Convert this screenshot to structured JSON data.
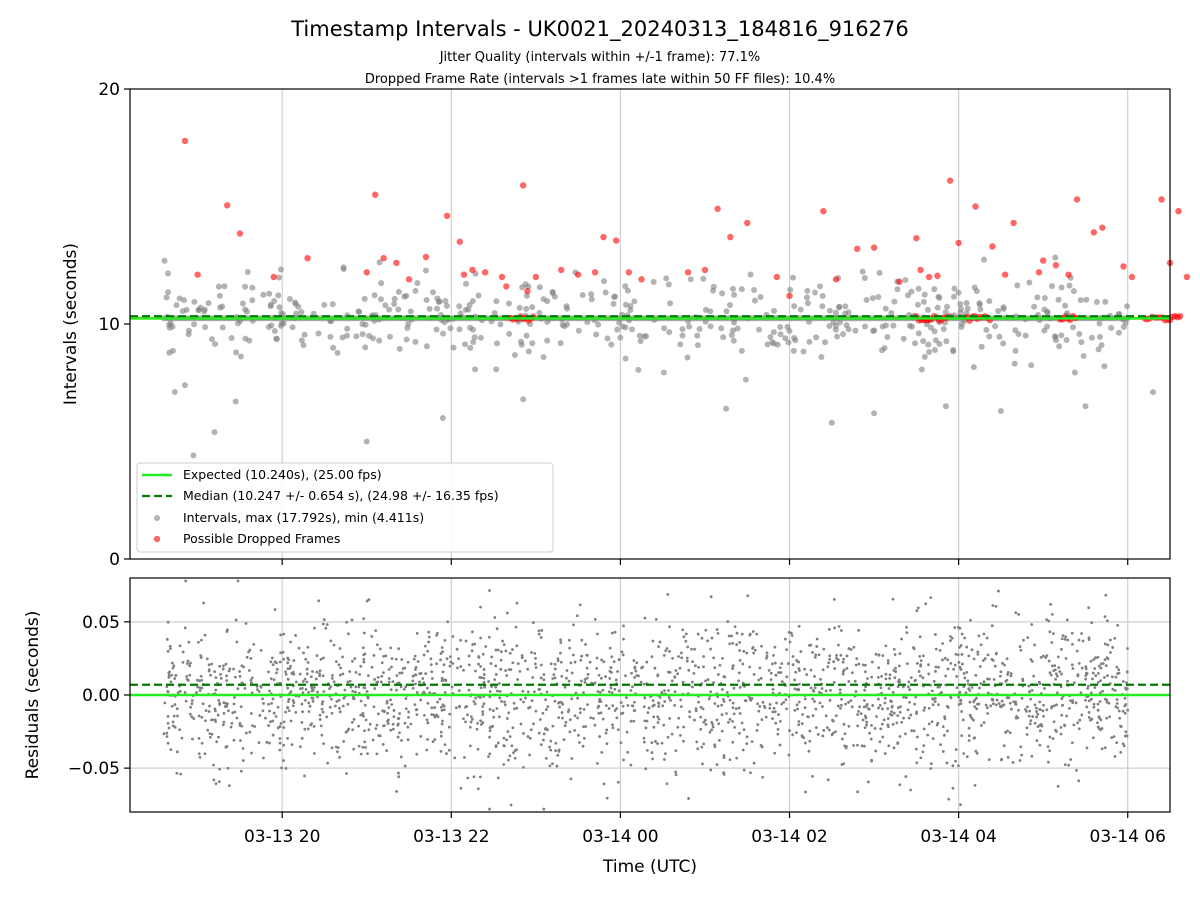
{
  "figure": {
    "title": "Timestamp Intervals - UK0021_20240313_184816_916276",
    "subtitle_1": "Jitter Quality (intervals within +/-1 frame): 77.1%",
    "subtitle_2": "Dropped Frame Rate (intervals >1 frames late within 50 FF files): 10.4%",
    "xlabel": "Time (UTC)",
    "x_tick_labels": [
      "03-13 20",
      "03-13 22",
      "03-14 00",
      "03-14 02",
      "03-14 04",
      "03-14 06"
    ]
  },
  "colors": {
    "expected": "#22ee22",
    "median": "#007a00",
    "intervals": "#808080",
    "dropped": "#ff0000",
    "band": "#f2c14e"
  },
  "chart_data": [
    {
      "type": "scatter",
      "ylabel": "Intervals (seconds)",
      "xlim_hours": [
        18.2,
        30.5
      ],
      "x_units": "hours since 03-13 00:00 UTC",
      "ylim": [
        0,
        20
      ],
      "y_ticks": [
        0,
        10,
        20
      ],
      "y_tick_labels": [
        "0",
        "10",
        "20"
      ],
      "grid": "vertical",
      "legend_position": "lower-left",
      "expected_value": 10.24,
      "median_value": 10.247,
      "legend": {
        "expected": "Expected (10.240s), (25.00 fps)",
        "median": "Median (10.247 +/- 0.654 s), (24.98 +/- 16.35 fps)",
        "intervals": "Intervals, max (17.792s), min (4.411s)",
        "dropped": "Possible Dropped Frames"
      },
      "time_range_hours": [
        18.6,
        30.0
      ],
      "intervals_baseline": 10.24,
      "max_interval": 17.792,
      "min_interval": 4.411,
      "dropped_points": [
        [
          18.85,
          17.79
        ],
        [
          19.0,
          12.1
        ],
        [
          19.35,
          15.05
        ],
        [
          19.5,
          13.85
        ],
        [
          19.9,
          12.0
        ],
        [
          20.3,
          12.8
        ],
        [
          21.0,
          12.2
        ],
        [
          21.1,
          15.5
        ],
        [
          21.2,
          12.8
        ],
        [
          21.35,
          12.6
        ],
        [
          21.5,
          11.9
        ],
        [
          21.7,
          12.85
        ],
        [
          21.95,
          14.6
        ],
        [
          22.1,
          13.5
        ],
        [
          22.15,
          12.1
        ],
        [
          22.25,
          12.3
        ],
        [
          22.4,
          12.2
        ],
        [
          22.6,
          12.0
        ],
        [
          22.65,
          11.6
        ],
        [
          22.85,
          15.9
        ],
        [
          22.9,
          11.4
        ],
        [
          23.0,
          12.0
        ],
        [
          23.3,
          12.3
        ],
        [
          23.5,
          12.1
        ],
        [
          23.7,
          12.2
        ],
        [
          23.8,
          13.7
        ],
        [
          23.95,
          13.55
        ],
        [
          24.1,
          12.2
        ],
        [
          24.25,
          11.9
        ],
        [
          24.8,
          12.2
        ],
        [
          25.0,
          12.3
        ],
        [
          25.15,
          14.9
        ],
        [
          25.3,
          13.7
        ],
        [
          25.5,
          14.3
        ],
        [
          25.85,
          12.0
        ],
        [
          26.0,
          11.2
        ],
        [
          26.4,
          14.8
        ],
        [
          26.55,
          11.9
        ],
        [
          26.8,
          13.2
        ],
        [
          27.0,
          13.25
        ],
        [
          27.3,
          11.8
        ],
        [
          27.5,
          13.65
        ],
        [
          27.55,
          12.3
        ],
        [
          27.65,
          12.0
        ],
        [
          27.75,
          12.05
        ],
        [
          27.9,
          16.1
        ],
        [
          28.0,
          13.45
        ],
        [
          28.2,
          15.0
        ],
        [
          28.4,
          13.3
        ],
        [
          28.55,
          12.1
        ],
        [
          28.65,
          14.3
        ],
        [
          28.95,
          12.2
        ],
        [
          29.0,
          12.7
        ],
        [
          29.15,
          12.5
        ],
        [
          29.3,
          12.1
        ],
        [
          29.4,
          15.3
        ],
        [
          29.6,
          13.9
        ],
        [
          29.7,
          14.1
        ],
        [
          29.95,
          12.45
        ],
        [
          30.05,
          12.0
        ],
        [
          30.4,
          15.3
        ],
        [
          30.5,
          12.6
        ],
        [
          30.6,
          14.8
        ],
        [
          30.7,
          12.0
        ]
      ]
    },
    {
      "type": "scatter",
      "ylabel": "Residuals (seconds)",
      "xlim_hours": [
        18.2,
        30.5
      ],
      "ylim": [
        -0.08,
        0.08
      ],
      "y_ticks": [
        -0.05,
        0.0,
        0.05
      ],
      "y_tick_labels": [
        "−0.05",
        "0.00",
        "0.05"
      ],
      "grid": "both",
      "expected_residual": 0.0,
      "median_residual": 0.007,
      "residual_spread_std": 0.025,
      "residual_range": [
        -0.078,
        0.078
      ]
    }
  ]
}
